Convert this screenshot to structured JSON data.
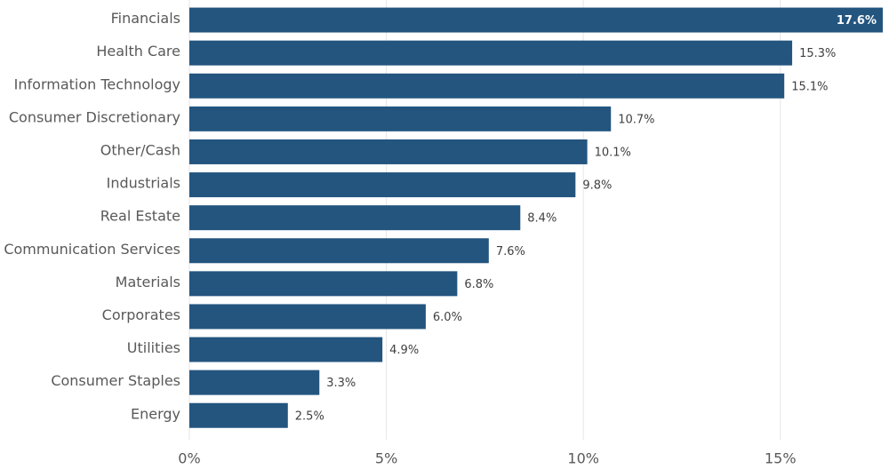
{
  "chart_data": {
    "type": "bar",
    "orientation": "horizontal",
    "categories": [
      "Financials",
      "Health Care",
      "Information Technology",
      "Consumer Discretionary",
      "Other/Cash",
      "Industrials",
      "Real Estate",
      "Communication Services",
      "Materials",
      "Corporates",
      "Utilities",
      "Consumer Staples",
      "Energy"
    ],
    "values": [
      17.6,
      15.3,
      15.1,
      10.7,
      10.1,
      9.8,
      8.4,
      7.6,
      6.8,
      6.0,
      4.9,
      3.3,
      2.5
    ],
    "value_labels": [
      "17.6%",
      "15.3%",
      "15.1%",
      "10.7%",
      "10.1%",
      "9.8%",
      "8.4%",
      "7.6%",
      "6.8%",
      "6.0%",
      "4.9%",
      "3.3%",
      "2.5%"
    ],
    "xlim": [
      0,
      17.6
    ],
    "x_ticks": [
      0,
      5,
      10,
      15
    ],
    "x_tick_labels": [
      "0%",
      "5%",
      "10%",
      "15%"
    ],
    "title": "",
    "xlabel": "",
    "ylabel": "",
    "grid": "vertical",
    "legend": "none",
    "bar_color": "#23557f"
  }
}
